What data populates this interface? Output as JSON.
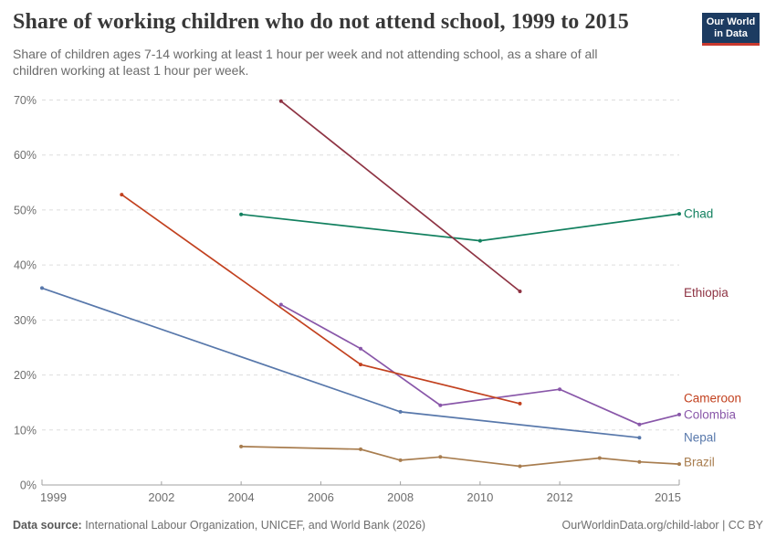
{
  "header": {
    "title": "Share of working children who do not attend school, 1999 to 2015",
    "subtitle": "Share of children ages 7-14 working at least 1 hour per week and not attending school, as a share of all children working at least 1 hour per week.",
    "logo": {
      "line1": "Our World",
      "line2": "in Data",
      "bg_color": "#1c3b61",
      "accent_color": "#c9392e"
    }
  },
  "footer": {
    "source_label": "Data source:",
    "source_text": " International Labour Organization, UNICEF, and World Bank (2026)",
    "credit": "OurWorldinData.org/child-labor | CC BY"
  },
  "chart_data": {
    "type": "line",
    "title": "Share of working children who do not attend school, 1999 to 2015",
    "xlabel": "",
    "ylabel": "",
    "x_range": [
      1999,
      2015
    ],
    "y_range": [
      0,
      70
    ],
    "x_ticks": [
      1999,
      2002,
      2004,
      2006,
      2008,
      2010,
      2012,
      2015
    ],
    "y_ticks": [
      0,
      10,
      20,
      30,
      40,
      50,
      60,
      70
    ],
    "y_tick_suffix": "%",
    "grid": "horizontal-dashed",
    "legend_position": "end-of-line-labels",
    "axis_color": "#a0a0a0",
    "grid_color": "#dddddd",
    "tick_label_color": "#6e6e6e",
    "series": [
      {
        "name": "Chad",
        "color": "#12805f",
        "points": [
          [
            2004,
            49.2
          ],
          [
            2010,
            44.4
          ],
          [
            2015,
            49.3
          ]
        ]
      },
      {
        "name": "Ethiopia",
        "color": "#8e3343",
        "points": [
          [
            2005,
            69.8
          ],
          [
            2011,
            35.2
          ]
        ]
      },
      {
        "name": "Cameroon",
        "color": "#c2411f",
        "points": [
          [
            2001,
            52.8
          ],
          [
            2007,
            21.9
          ],
          [
            2011,
            14.8
          ]
        ]
      },
      {
        "name": "Colombia",
        "color": "#8957a9",
        "points": [
          [
            2005,
            32.8
          ],
          [
            2007,
            24.8
          ],
          [
            2009,
            14.5
          ],
          [
            2012,
            17.4
          ],
          [
            2014,
            11.0
          ],
          [
            2015,
            12.8
          ]
        ]
      },
      {
        "name": "Nepal",
        "color": "#5878ab",
        "points": [
          [
            1999,
            35.8
          ],
          [
            2008,
            13.3
          ],
          [
            2014,
            8.6
          ]
        ]
      },
      {
        "name": "Brazil",
        "color": "#a87d4f",
        "points": [
          [
            2004,
            7.0
          ],
          [
            2007,
            6.5
          ],
          [
            2008,
            4.5
          ],
          [
            2009,
            5.1
          ],
          [
            2011,
            3.4
          ],
          [
            2013,
            4.9
          ],
          [
            2014,
            4.2
          ],
          [
            2015,
            3.8
          ]
        ]
      }
    ]
  }
}
